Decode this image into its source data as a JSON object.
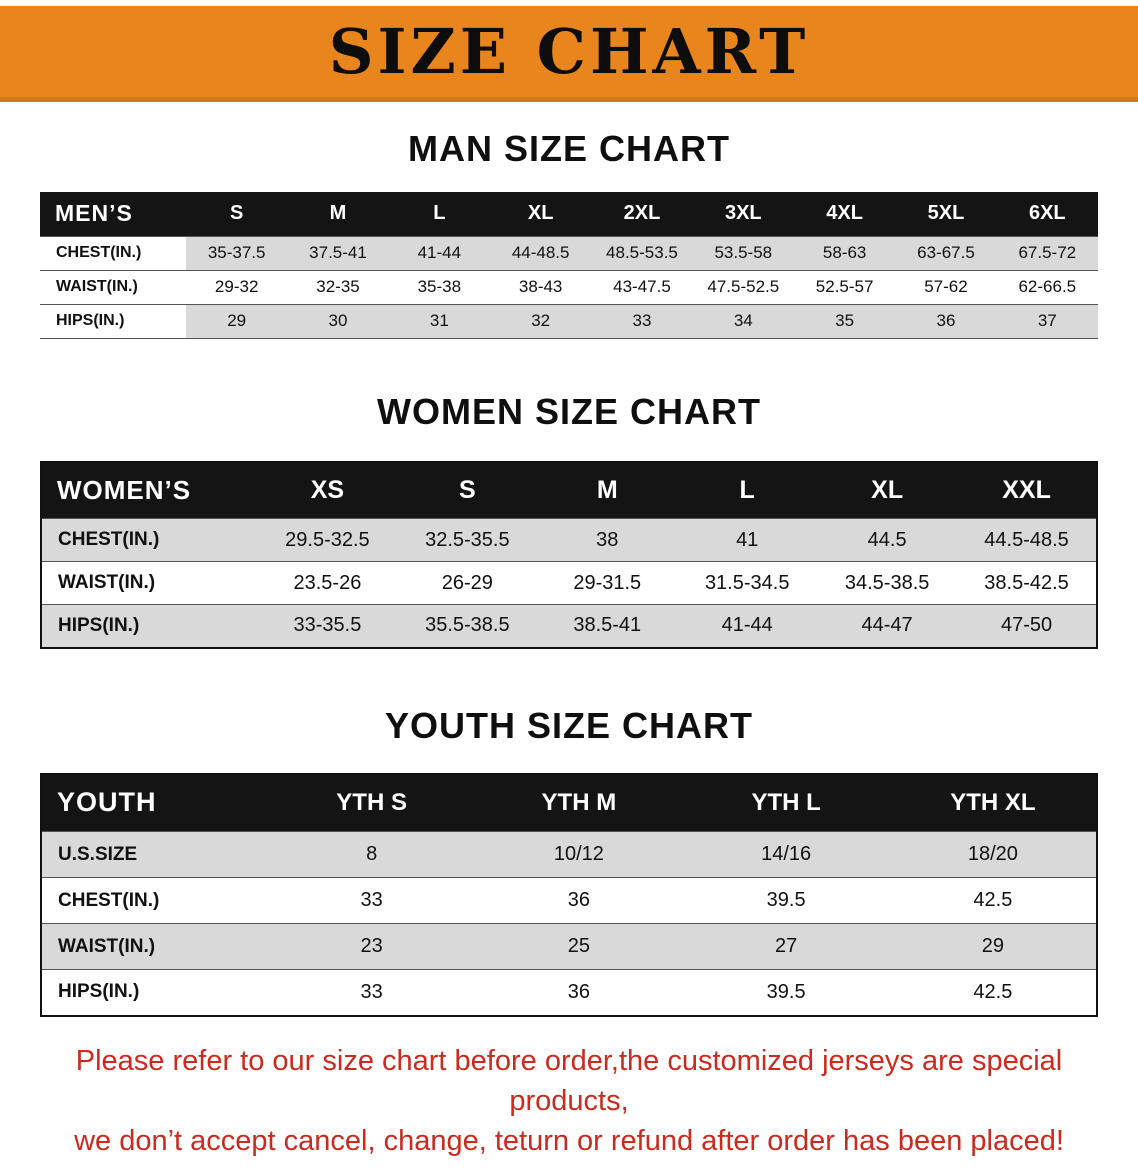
{
  "banner": {
    "title": "SIZE CHART"
  },
  "headings": {
    "men": "MAN SIZE CHART",
    "women": "WOMEN SIZE CHART",
    "youth": "YOUTH SIZE CHART"
  },
  "men_table": {
    "header": [
      "MEN’S",
      "S",
      "M",
      "L",
      "XL",
      "2XL",
      "3XL",
      "4XL",
      "5XL",
      "6XL"
    ],
    "rows": [
      [
        "CHEST(IN.)",
        "35-37.5",
        "37.5-41",
        "41-44",
        "44-48.5",
        "48.5-53.5",
        "53.5-58",
        "58-63",
        "63-67.5",
        "67.5-72"
      ],
      [
        "WAIST(IN.)",
        "29-32",
        "32-35",
        "35-38",
        "38-43",
        "43-47.5",
        "47.5-52.5",
        "52.5-57",
        "57-62",
        "62-66.5"
      ],
      [
        "HIPS(IN.)",
        "29",
        "30",
        "31",
        "32",
        "33",
        "34",
        "35",
        "36",
        "37"
      ]
    ]
  },
  "women_table": {
    "header": [
      "WOMEN’S",
      "XS",
      "S",
      "M",
      "L",
      "XL",
      "XXL"
    ],
    "rows": [
      [
        "CHEST(IN.)",
        "29.5-32.5",
        "32.5-35.5",
        "38",
        "41",
        "44.5",
        "44.5-48.5"
      ],
      [
        "WAIST(IN.)",
        "23.5-26",
        "26-29",
        "29-31.5",
        "31.5-34.5",
        "34.5-38.5",
        "38.5-42.5"
      ],
      [
        "HIPS(IN.)",
        "33-35.5",
        "35.5-38.5",
        "38.5-41",
        "41-44",
        "44-47",
        "47-50"
      ]
    ]
  },
  "youth_table": {
    "header": [
      "YOUTH",
      "YTH S",
      "YTH M",
      "YTH L",
      "YTH XL"
    ],
    "rows": [
      [
        "U.S.SIZE",
        "8",
        "10/12",
        "14/16",
        "18/20"
      ],
      [
        "CHEST(IN.)",
        "33",
        "36",
        "39.5",
        "42.5"
      ],
      [
        "WAIST(IN.)",
        "23",
        "25",
        "27",
        "29"
      ],
      [
        "HIPS(IN.)",
        "33",
        "36",
        "39.5",
        "42.5"
      ]
    ]
  },
  "footer": {
    "line1": "Please refer to our size chart before order,the customized jerseys are special products,",
    "line2": "we don’t accept cancel, change, teturn or refund after order has been placed!"
  },
  "colors": {
    "banner_orange": "#E8851C",
    "header_black": "#141414",
    "stripe_gray": "#D9D9D9",
    "note_red": "#CC2A1E"
  }
}
